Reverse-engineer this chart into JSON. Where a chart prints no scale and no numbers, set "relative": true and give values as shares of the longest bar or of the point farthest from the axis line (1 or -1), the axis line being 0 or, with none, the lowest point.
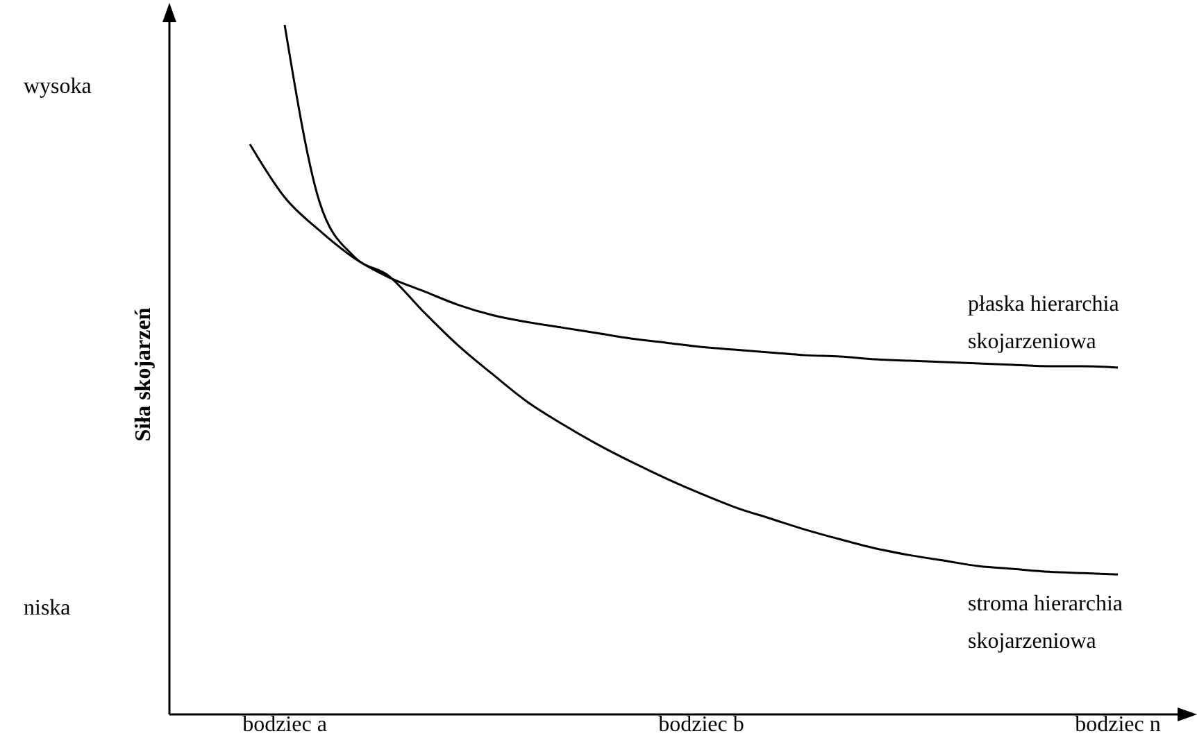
{
  "chart_data": {
    "type": "line",
    "relative": true,
    "ylabel": "Siła skojarzeń",
    "legend": false,
    "categories": [
      null,
      "bodziec a",
      null,
      null,
      null,
      null,
      null,
      null,
      null,
      null,
      null,
      null,
      null,
      "bodziec b",
      null,
      null,
      null,
      null,
      null,
      null,
      null,
      null,
      null,
      null,
      null,
      "bodziec n"
    ],
    "annotations": [
      "wysoka",
      "niska"
    ],
    "series": [
      {
        "name": "płaska hierarchia skojarzeniowa",
        "color": "#000000",
        "values": [
          0.827,
          0.75,
          0.702,
          0.662,
          0.634,
          0.614,
          0.594,
          0.579,
          0.569,
          0.561,
          0.553,
          0.545,
          0.539,
          0.533,
          0.529,
          0.525,
          0.521,
          0.519,
          0.515,
          0.513,
          0.511,
          0.509,
          0.507,
          0.505,
          0.505,
          0.503
        ]
      },
      {
        "name": "stroma hierarchia skojarzeniowa",
        "color": "#000000",
        "values": [
          null,
          1.0,
          0.744,
          0.664,
          0.636,
          0.584,
          0.535,
          0.493,
          0.453,
          0.421,
          0.392,
          0.366,
          0.342,
          0.32,
          0.3,
          0.284,
          0.268,
          0.254,
          0.241,
          0.231,
          0.223,
          0.215,
          0.211,
          0.207,
          0.205,
          0.203
        ]
      }
    ]
  }
}
